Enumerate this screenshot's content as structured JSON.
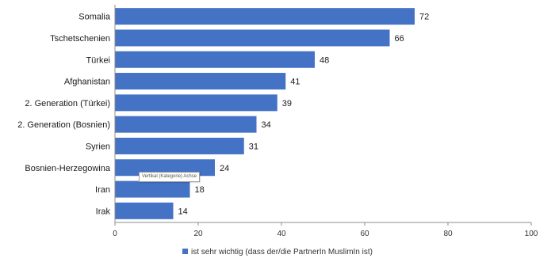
{
  "chart_data": {
    "type": "bar",
    "orientation": "horizontal",
    "categories": [
      "Somalia",
      "Tschetschenien",
      "Türkei",
      "Afghanistan",
      "2. Generation (Türkei)",
      "2. Generation (Bosnien)",
      "Syrien",
      "Bosnien-Herzegowina",
      "Iran",
      "Irak"
    ],
    "series": [
      {
        "name": "ist sehr wichtig (dass der/die PartnerIn MuslimIn ist)",
        "values": [
          72,
          66,
          48,
          41,
          39,
          34,
          31,
          24,
          18,
          14
        ],
        "color": "#4472c4"
      }
    ],
    "xlim": [
      0,
      100
    ],
    "xticks": [
      0,
      20,
      40,
      60,
      80,
      100
    ],
    "grid": false,
    "legend_position": "bottom",
    "data_labels": true
  },
  "tooltip": {
    "text": "Vertikal (Kategorie) Achse"
  },
  "colors": {
    "bar": "#4472c4",
    "axis": "#8c8c8c"
  }
}
